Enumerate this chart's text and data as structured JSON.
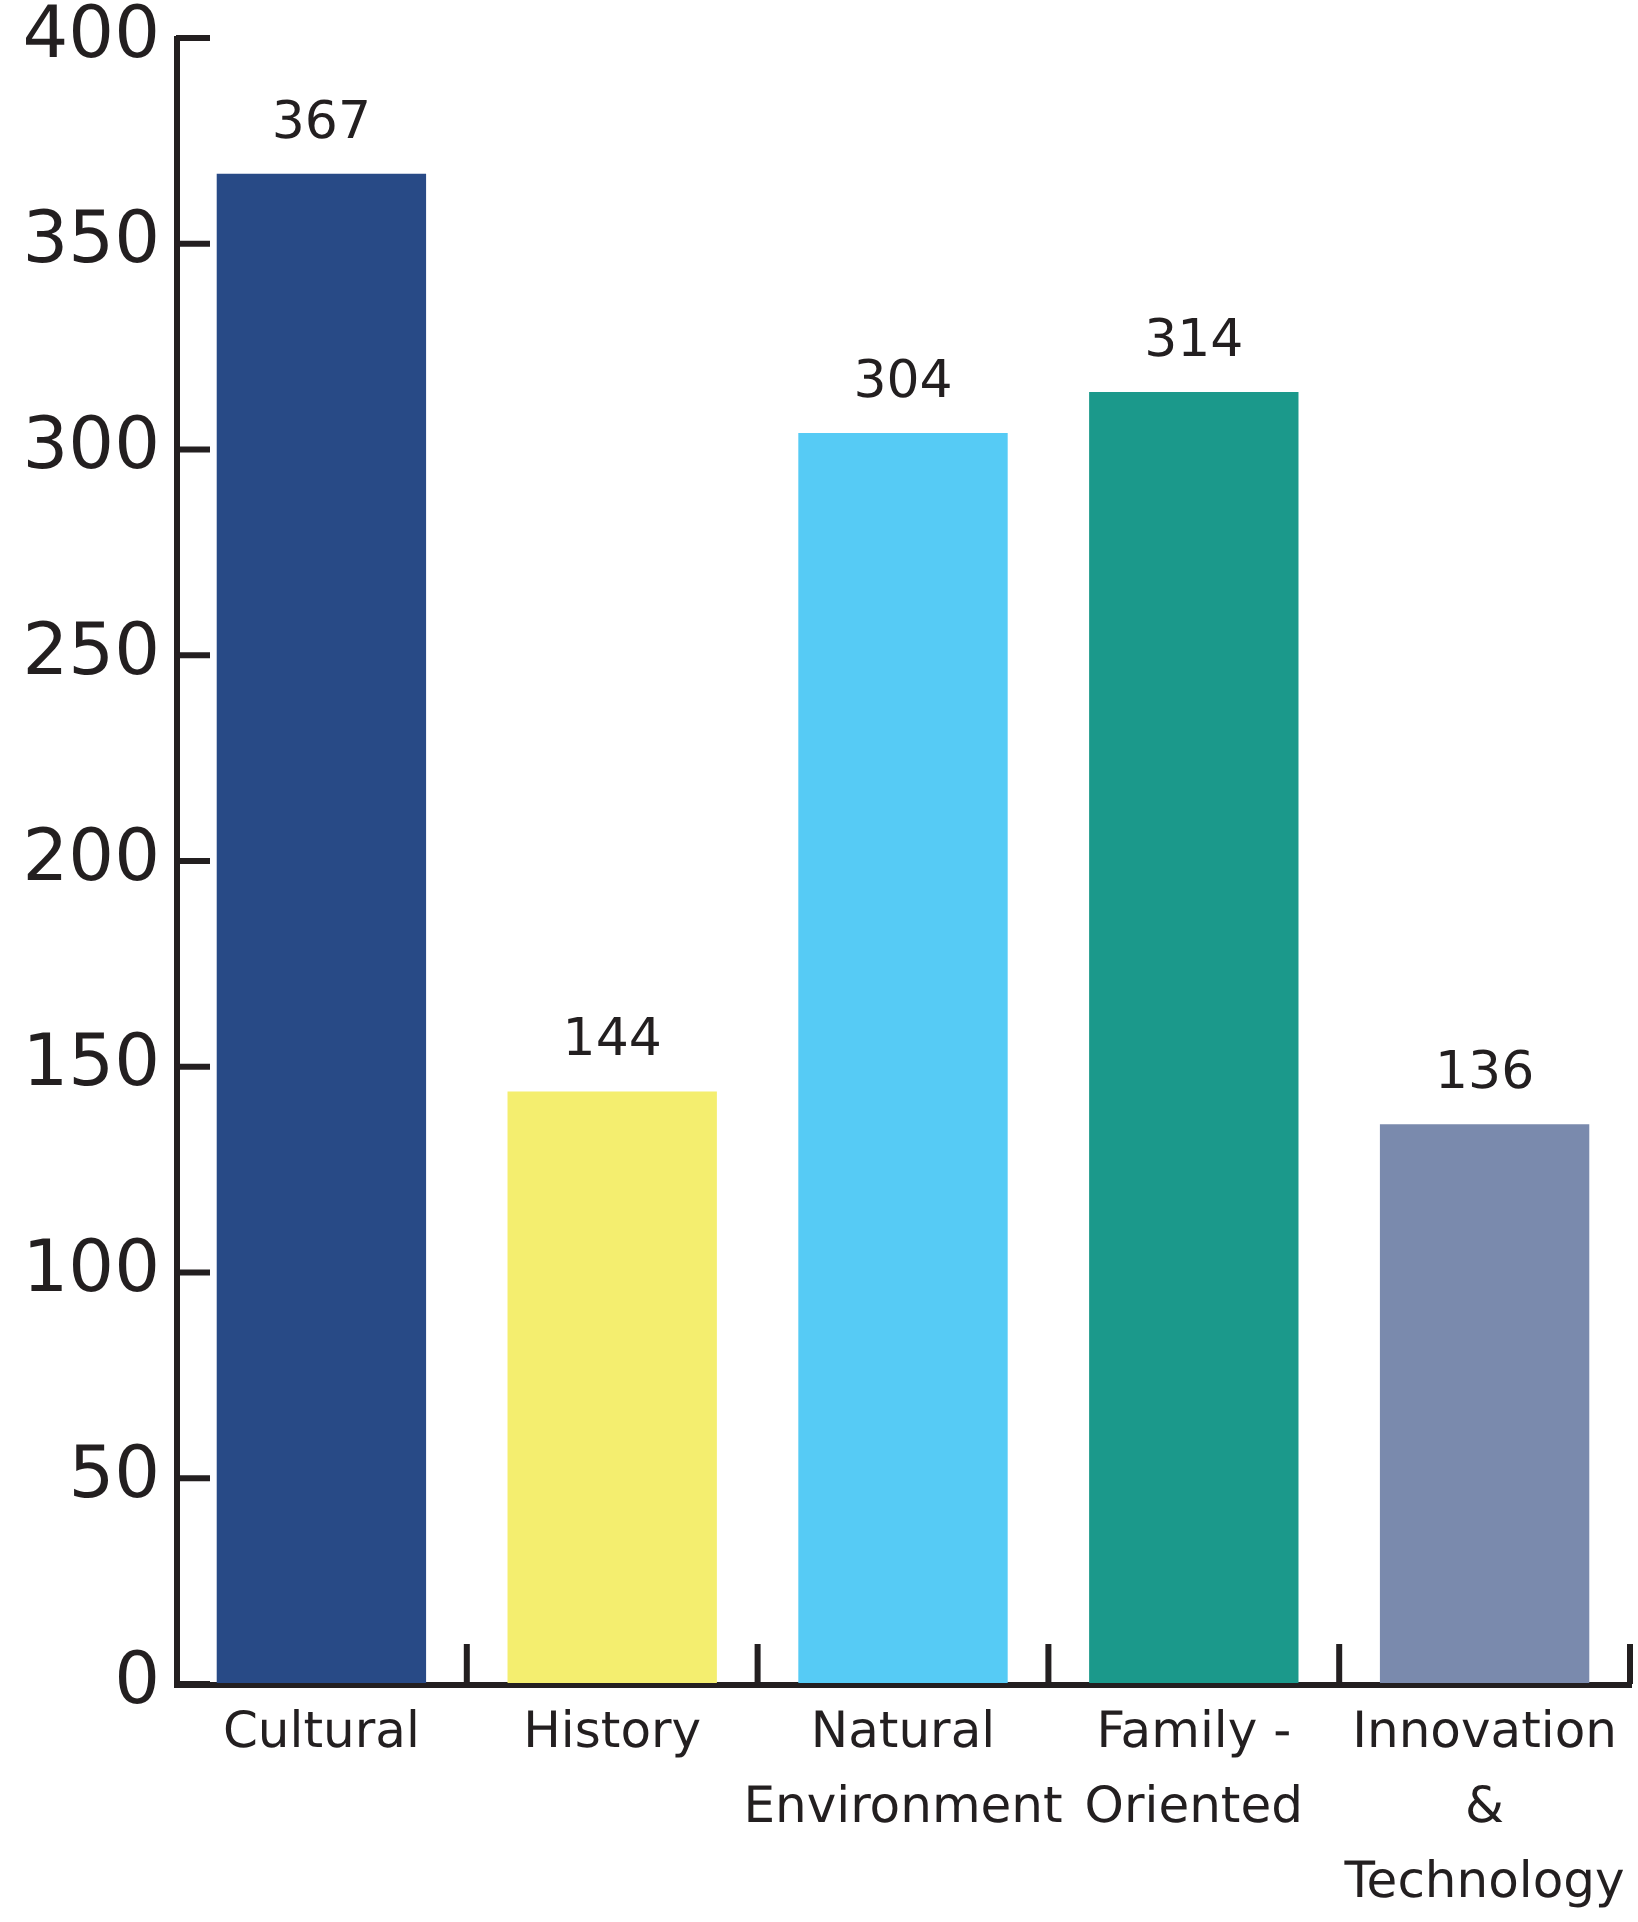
{
  "chart_data": {
    "type": "bar",
    "categories": [
      "Cultural",
      "History",
      "Natural Environment",
      "Family - Oriented",
      "Innovation & Technology"
    ],
    "values": [
      367,
      144,
      304,
      314,
      136
    ],
    "colors": [
      "#284a86",
      "#f4ee6f",
      "#56cbf5",
      "#1b998b",
      "#7a8aad"
    ],
    "ylim": [
      0,
      400
    ],
    "yticks": [
      0,
      50,
      100,
      150,
      200,
      250,
      300,
      350,
      400
    ],
    "data_labels": true
  }
}
